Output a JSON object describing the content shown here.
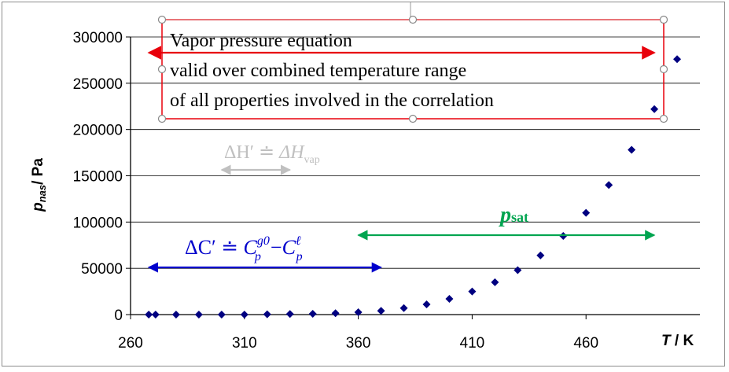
{
  "chart_data": {
    "type": "scatter",
    "x_ticks": [
      "260",
      "310",
      "360",
      "410",
      "460"
    ],
    "y_ticks": [
      "0",
      "50000",
      "100000",
      "150000",
      "200000",
      "250000",
      "300000"
    ],
    "xlim": [
      260,
      510
    ],
    "ylim": [
      0,
      300000
    ],
    "grid": "horizontal",
    "ylabel": {
      "main": "p",
      "sub": "nas",
      "rest": "/ Pa"
    },
    "xlabel": {
      "main": "T",
      "rest": " / K"
    },
    "marker_color": "#000080",
    "points": [
      [
        268,
        0
      ],
      [
        271,
        0
      ],
      [
        280,
        0
      ],
      [
        290,
        0
      ],
      [
        300,
        0
      ],
      [
        310,
        0
      ],
      [
        320,
        300
      ],
      [
        330,
        600
      ],
      [
        340,
        900
      ],
      [
        350,
        1500
      ],
      [
        360,
        2500
      ],
      [
        370,
        4000
      ],
      [
        380,
        7000
      ],
      [
        390,
        11000
      ],
      [
        400,
        17000
      ],
      [
        410,
        25000
      ],
      [
        420,
        35000
      ],
      [
        430,
        48000
      ],
      [
        440,
        64000
      ],
      [
        450,
        85000
      ],
      [
        460,
        110000
      ],
      [
        470,
        140000
      ],
      [
        480,
        178000
      ],
      [
        490,
        222000
      ],
      [
        500,
        276000
      ]
    ],
    "annotations": {
      "box_lines": [
        "Vapor pressure equation",
        "valid over combined temperature range",
        "of all properties involved in the correlation"
      ],
      "box_color": "#e8000b",
      "box_range": [
        268,
        490
      ],
      "dh": {
        "lhs": "ΔH′",
        "eq": "≐",
        "rhs": "ΔH",
        "sub": "vap",
        "color": "#c0c0c0",
        "range": [
          300,
          330
        ]
      },
      "psat": {
        "main": "p",
        "sub": "sat",
        "color": "#00a550",
        "range": [
          360,
          490
        ]
      },
      "dc": {
        "lhs": "ΔC′",
        "eq": "≐",
        "c1": "C",
        "c1_sub": "p",
        "c1_sup": "g0",
        "minus": "−",
        "c2": "C",
        "c2_sub": "p",
        "c2_sup": "ℓ",
        "color": "#0000cc",
        "range": [
          268,
          370
        ]
      }
    }
  }
}
